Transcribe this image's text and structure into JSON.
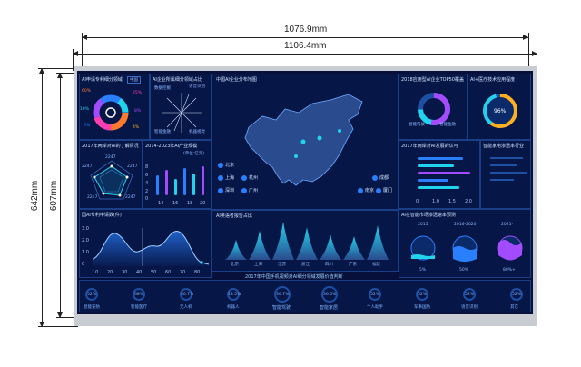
{
  "dimensions": {
    "top1": "1076.9mm",
    "top2": "1106.4mm",
    "left1": "642mm",
    "left2": "607mm"
  },
  "panels": {
    "tl_title": "AI申请专利细分领域",
    "tl_dropdown": "中国",
    "tl_pct": [
      "60%",
      "25%",
      "10%",
      "8%",
      "6%",
      "4%"
    ],
    "tm_title": "AI企业所属细分领域占比",
    "tm_labels": [
      "数据挖掘",
      "语音识别",
      "智能金融",
      "机器视觉"
    ],
    "ml_title": "2017年两岸对AI的了解情况",
    "ml_labels": [
      "2247",
      "2247",
      "2247",
      "2247",
      "2247"
    ],
    "mm_title": "2014-2023年AI产业规模",
    "mm_unit": "(单位:亿元)",
    "mm_yticks": [
      "8",
      "6",
      "4",
      "2",
      "0"
    ],
    "mm_xticks": [
      "14",
      "16",
      "18",
      "20"
    ],
    "bl_title": "国AI专利申请数(件)",
    "bl_yticks": [
      "3.0",
      "2.0",
      "1.0",
      "0"
    ],
    "bl_xticks": [
      "10",
      "20",
      "30",
      "40",
      "50",
      "60",
      "70",
      "80"
    ],
    "center_title": "中国AI企业分布地图",
    "cities": [
      "北京",
      "上海",
      "杭州",
      "深圳",
      "广州",
      "成都",
      "南京",
      "厦门"
    ],
    "cb_title": "AI英语者报告占比",
    "cb_cities": [
      "北京",
      "上海",
      "江苏",
      "浙江",
      "四川",
      "广东",
      "福建"
    ],
    "bottom_title": "2017年中国手机视频对AI细分领域发展价值判断",
    "tr1_title": "2018应用型AI企业TOP50覆盖",
    "tr1_labels": [
      "智能驾驶",
      "智能金融"
    ],
    "tr2_title": "AI+医疗技术应用程度",
    "tr2_pct": "96%",
    "mr1_title": "2017年两岸对AI发展的认可",
    "mr1_xticks": [
      "0",
      "1.0",
      "1.5",
      "2.0"
    ],
    "mr2_title": "智能家电渗透率行业",
    "br_title": "AI在智能市场渗透速率预测",
    "br_periods": [
      "2015",
      "2016-2020",
      "2021-"
    ],
    "br_pct": [
      "5%",
      "50%",
      "80%+"
    ],
    "bottom_items": [
      {
        "pct": "52%",
        "label": "智能安防"
      },
      {
        "pct": "68%",
        "label": "智能医疗"
      },
      {
        "pct": "30.7%",
        "label": "无人机"
      },
      {
        "pct": "18.5%",
        "label": "机器人"
      },
      {
        "pct": "30.7%",
        "label": "智能驾驶"
      },
      {
        "pct": "36.6%",
        "label": "智能家居"
      },
      {
        "pct": "52%",
        "label": "个人助手"
      },
      {
        "pct": "52%",
        "label": "军事国防"
      },
      {
        "pct": "52%",
        "label": "语音识别"
      },
      {
        "pct": "52%",
        "label": "其它"
      }
    ]
  },
  "colors": {
    "bg": "#06103a",
    "accent": "#2a7fff",
    "cyan": "#22d3ee",
    "purple": "#a24bff",
    "orange": "#ff8a1f"
  }
}
